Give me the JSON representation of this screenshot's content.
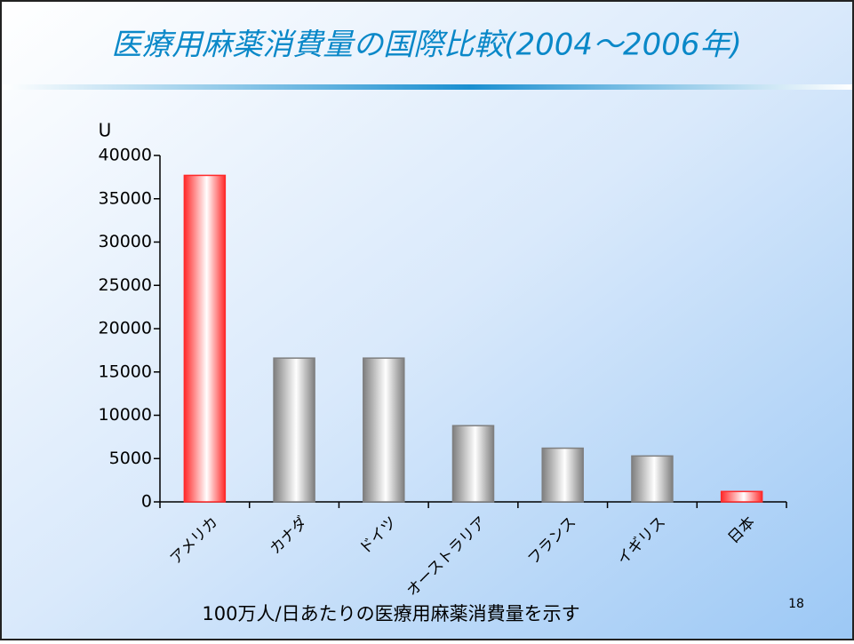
{
  "chart_data": {
    "type": "bar",
    "title": "医療用麻薬消費量の国際比較(2004〜2006年)",
    "y_label": "U",
    "categories": [
      "アメリカ",
      "カナダ",
      "ドイツ",
      "オーストラリア",
      "フランス",
      "イギリス",
      "日本"
    ],
    "values": [
      37700,
      16600,
      16600,
      8800,
      6200,
      5300,
      1200
    ],
    "colors": [
      "#ff2a2a",
      "#7f7f7f",
      "#7f7f7f",
      "#7f7f7f",
      "#7f7f7f",
      "#7f7f7f",
      "#ff2a2a"
    ],
    "ylim": [
      0,
      40000
    ],
    "yticks": [
      0,
      5000,
      10000,
      15000,
      20000,
      25000,
      30000,
      35000,
      40000
    ],
    "note": "100万人/日あたりの医療用麻薬消費量を示す",
    "page_number": "18"
  }
}
